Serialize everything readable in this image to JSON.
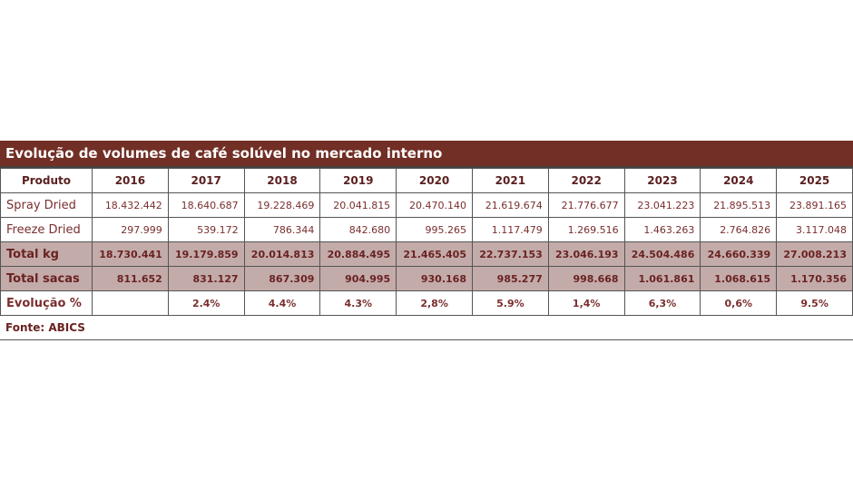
{
  "title": "Evolução de volumes de café solúvel no mercado interno",
  "header": {
    "label": "Produto",
    "years": [
      "2016",
      "2017",
      "2018",
      "2019",
      "2020",
      "2021",
      "2022",
      "2023",
      "2024",
      "2025"
    ]
  },
  "rows": [
    {
      "label": "Spray Dried",
      "values": [
        "18.432.442",
        "18.640.687",
        "19.228.469",
        "20.041.815",
        "20.470.140",
        "21.619.674",
        "21.776.677",
        "23.041.223",
        "21.895.513",
        "23.891.165"
      ]
    },
    {
      "label": "Freeze Dried",
      "values": [
        "297.999",
        "539.172",
        "786.344",
        "842.680",
        "995.265",
        "1.117.479",
        "1.269.516",
        "1.463.263",
        "2.764.826",
        "3.117.048"
      ]
    },
    {
      "label": "Total  kg",
      "values": [
        "18.730.441",
        "19.179.859",
        "20.014.813",
        "20.884.495",
        "21.465.405",
        "22.737.153",
        "23.046.193",
        "24.504.486",
        "24.660.339",
        "27.008.213"
      ]
    },
    {
      "label": "Total  sacas",
      "values": [
        "811.652",
        "831.127",
        "867.309",
        "904.995",
        "930.168",
        "985.277",
        "998.668",
        "1.061.861",
        "1.068.615",
        "1.170.356"
      ]
    },
    {
      "label": "Evolução %",
      "values": [
        "",
        "2.4%",
        "4.4%",
        "4.3%",
        "2,8%",
        "5.9%",
        "1,4%",
        "6,3%",
        "0,6%",
        "9.5%"
      ]
    }
  ],
  "source": "Fonte: ABICS"
}
